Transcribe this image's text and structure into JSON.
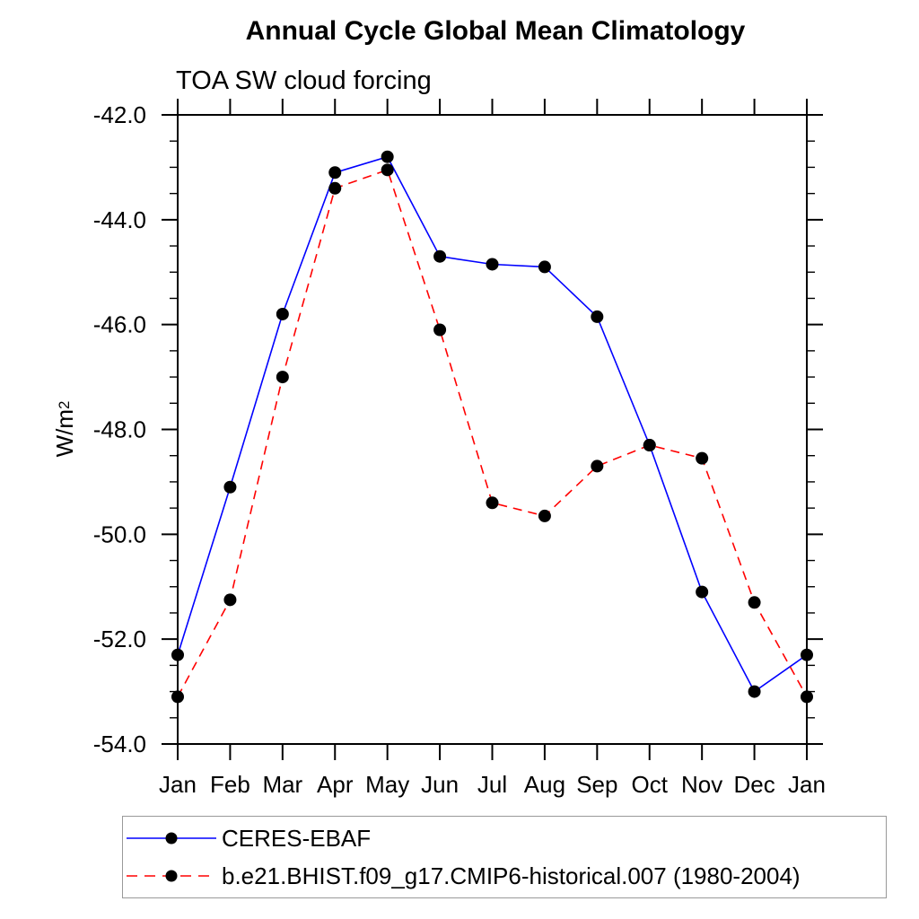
{
  "chart_data": {
    "type": "line",
    "title": "Annual Cycle Global Mean Climatology",
    "subtitle": "TOA SW cloud forcing",
    "ylabel_base": "W/m",
    "ylabel_exponent": "2",
    "categories": [
      "Jan",
      "Feb",
      "Mar",
      "Apr",
      "May",
      "Jun",
      "Jul",
      "Aug",
      "Sep",
      "Oct",
      "Nov",
      "Dec",
      "Jan"
    ],
    "ylim": [
      -54.0,
      -42.0
    ],
    "ytick_major_interval": 2.0,
    "ytick_minor_interval": 0.5,
    "ytick_labels": [
      "-42.0",
      "-44.0",
      "-46.0",
      "-48.0",
      "-50.0",
      "-52.0",
      "-54.0"
    ],
    "grid": false,
    "legend_position": "bottom-left-box",
    "frame_color": "#000000",
    "marker": {
      "shape": "circle",
      "color": "#000000",
      "radius": 7
    },
    "series": [
      {
        "name": "CERES-EBAF",
        "color": "#0000ff",
        "line_style": "solid",
        "values": [
          -52.3,
          -49.1,
          -45.8,
          -43.1,
          -42.8,
          -44.7,
          -44.85,
          -44.9,
          -45.85,
          -48.3,
          -51.1,
          -53.0,
          -52.3
        ]
      },
      {
        "name": "b.e21.BHIST.f09_g17.CMIP6-historical.007 (1980-2004)",
        "color": "#ff0000",
        "line_style": "dashed",
        "values": [
          -53.1,
          -51.25,
          -47.0,
          -43.4,
          -43.05,
          -46.1,
          -49.4,
          -49.65,
          -48.7,
          -48.3,
          -48.55,
          -51.3,
          -53.1
        ]
      }
    ]
  }
}
